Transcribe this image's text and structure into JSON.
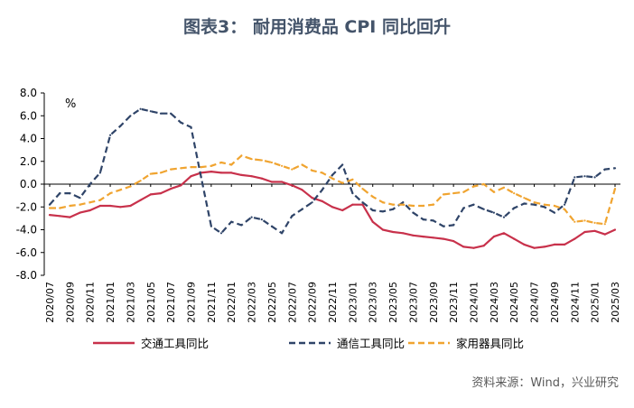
{
  "chart_data": {
    "type": "line",
    "title": "图表3： 耐用消费品 CPI 同比回升",
    "unit": "%",
    "ylim": [
      -8.0,
      8.0
    ],
    "yticks": [
      "8.0",
      "6.0",
      "4.0",
      "2.0",
      "0.0",
      "-2.0",
      "-4.0",
      "-6.0",
      "-8.0"
    ],
    "grid": false,
    "legend_position": "bottom",
    "source": "资料来源：Wind，兴业研究",
    "x": [
      "2020/07",
      "2020/08",
      "2020/09",
      "2020/10",
      "2020/11",
      "2020/12",
      "2021/01",
      "2021/02",
      "2021/03",
      "2021/04",
      "2021/05",
      "2021/06",
      "2021/07",
      "2021/08",
      "2021/09",
      "2021/10",
      "2021/11",
      "2021/12",
      "2022/01",
      "2022/02",
      "2022/03",
      "2022/04",
      "2022/05",
      "2022/06",
      "2022/07",
      "2022/08",
      "2022/09",
      "2022/10",
      "2022/11",
      "2022/12",
      "2023/01",
      "2023/02",
      "2023/03",
      "2023/04",
      "2023/05",
      "2023/06",
      "2023/07",
      "2023/08",
      "2023/09",
      "2023/10",
      "2023/11",
      "2023/12",
      "2024/01",
      "2024/02",
      "2024/03",
      "2024/04",
      "2024/05",
      "2024/06",
      "2024/07",
      "2024/08",
      "2024/09",
      "2024/10",
      "2024/11",
      "2024/12",
      "2025/01",
      "2025/02",
      "2025/03"
    ],
    "xticks": [
      "2020/07",
      "2020/09",
      "2020/11",
      "2021/01",
      "2021/03",
      "2021/05",
      "2021/07",
      "2021/09",
      "2021/11",
      "2022/01",
      "2022/03",
      "2022/05",
      "2022/07",
      "2022/09",
      "2022/11",
      "2023/01",
      "2023/03",
      "2023/05",
      "2023/07",
      "2023/09",
      "2023/11",
      "2024/01",
      "2024/03",
      "2024/05",
      "2024/07",
      "2024/09",
      "2024/11",
      "2025/01",
      "2025/03"
    ],
    "series": [
      {
        "name": "交通工具同比",
        "color": "#c8314b",
        "style": "solid",
        "values": [
          -2.7,
          -2.8,
          -2.9,
          -2.5,
          -2.3,
          -1.9,
          -1.9,
          -2.0,
          -1.9,
          -1.4,
          -0.9,
          -0.8,
          -0.4,
          -0.1,
          0.7,
          1.0,
          1.1,
          1.0,
          1.0,
          0.8,
          0.7,
          0.5,
          0.2,
          0.2,
          -0.1,
          -0.5,
          -1.2,
          -1.5,
          -2.0,
          -2.3,
          -1.8,
          -1.8,
          -3.3,
          -4.0,
          -4.2,
          -4.3,
          -4.5,
          -4.6,
          -4.7,
          -4.8,
          -5.0,
          -5.5,
          -5.6,
          -5.4,
          -4.6,
          -4.3,
          -4.8,
          -5.3,
          -5.6,
          -5.5,
          -5.3,
          -5.3,
          -4.8,
          -4.2,
          -4.1,
          -4.4,
          -4.0
        ]
      },
      {
        "name": "通信工具同比",
        "color": "#2f4468",
        "style": "dashed",
        "values": [
          -1.8,
          -0.8,
          -0.8,
          -1.2,
          0.0,
          1.0,
          4.3,
          5.1,
          6.0,
          6.6,
          6.4,
          6.2,
          6.2,
          5.4,
          5.0,
          0.6,
          -3.7,
          -4.3,
          -3.3,
          -3.6,
          -2.9,
          -3.1,
          -3.7,
          -4.3,
          -2.8,
          -2.2,
          -1.6,
          -0.5,
          0.8,
          1.7,
          -0.8,
          -1.6,
          -2.3,
          -2.4,
          -2.2,
          -1.6,
          -2.5,
          -3.1,
          -3.2,
          -3.7,
          -3.6,
          -2.1,
          -1.8,
          -2.2,
          -2.5,
          -2.9,
          -2.1,
          -1.7,
          -1.8,
          -2.0,
          -2.5,
          -1.8,
          0.6,
          0.7,
          0.6,
          1.3,
          1.4
        ]
      },
      {
        "name": "家用器具同比",
        "color": "#f0a430",
        "style": "dashed",
        "values": [
          -2.1,
          -2.1,
          -1.9,
          -1.8,
          -1.6,
          -1.4,
          -0.8,
          -0.5,
          -0.2,
          0.3,
          0.9,
          1.0,
          1.3,
          1.4,
          1.5,
          1.5,
          1.6,
          1.9,
          1.7,
          2.5,
          2.2,
          2.1,
          1.9,
          1.6,
          1.3,
          1.7,
          1.2,
          1.0,
          0.5,
          0.1,
          0.4,
          -0.4,
          -1.1,
          -1.6,
          -1.8,
          -1.8,
          -1.9,
          -1.9,
          -1.8,
          -0.9,
          -0.8,
          -0.7,
          -0.2,
          0.0,
          -0.7,
          -0.3,
          -0.8,
          -1.2,
          -1.6,
          -1.8,
          -1.9,
          -2.2,
          -3.3,
          -3.2,
          -3.4,
          -3.5,
          -0.4
        ]
      }
    ]
  }
}
